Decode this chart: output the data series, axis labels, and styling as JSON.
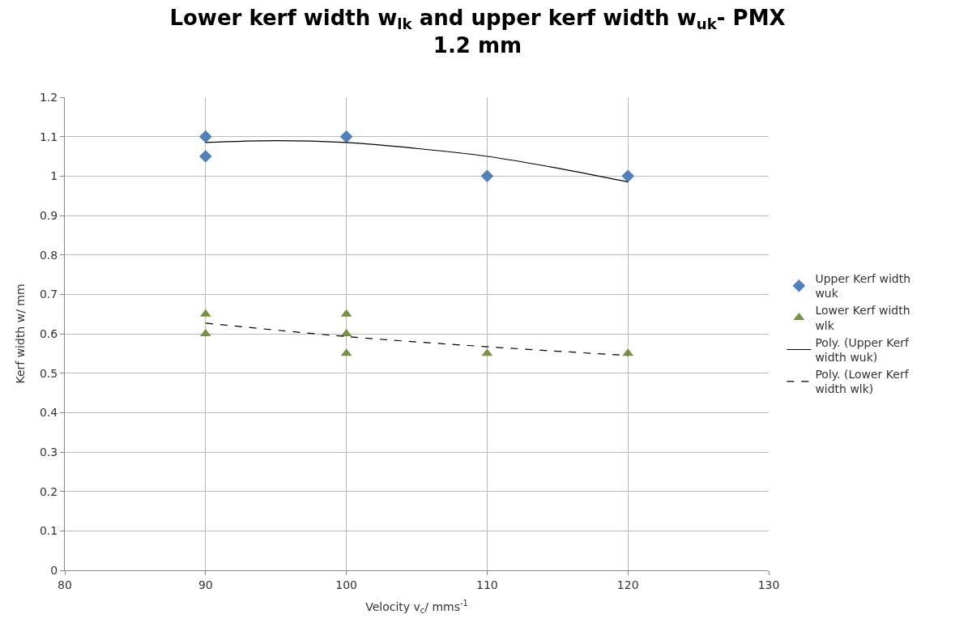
{
  "chart_data": {
    "type": "scatter",
    "title": "Lower kerf width w$_{lk}$ and upper kerf width w$_{uk}$- PMX\n1.2 mm",
    "xlabel": "Velocity v$_{c}$/ mms$^{-1}$",
    "ylabel": "Kerf width w/ mm",
    "series": [
      {
        "name": "Upper Kerf width wuk",
        "color": "#4f81bd",
        "marker": "diamond",
        "x": [
          90,
          90,
          100,
          110,
          120
        ],
        "values": [
          1.1,
          1.05,
          1.1,
          1.0,
          1.0
        ]
      },
      {
        "name": "Lower Kerf width wlk",
        "color": "#77933c",
        "marker": "triangle",
        "x": [
          90,
          90,
          100,
          100,
          100,
          110,
          120
        ],
        "values": [
          0.65,
          0.6,
          0.65,
          0.6,
          0.55,
          0.55,
          0.55
        ]
      },
      {
        "name": "Poly. (Upper Kerf width wuk)",
        "type": "line",
        "color": "#000000",
        "marker": "none",
        "line_style": "solid",
        "x": [
          90,
          95,
          100,
          105,
          110,
          115,
          120
        ],
        "values": [
          1.085,
          1.09,
          1.085,
          1.07,
          1.05,
          1.02,
          0.985
        ]
      },
      {
        "name": "Poly. (Lower Kerf width wlk)",
        "type": "line",
        "color": "#000000",
        "marker": "none",
        "line_style": "dashed",
        "x": [
          90,
          100,
          110,
          120
        ],
        "values": [
          0.627,
          0.593,
          0.567,
          0.545
        ]
      }
    ],
    "xlim": [
      80,
      130
    ],
    "xticks": [
      80,
      90,
      100,
      110,
      120,
      130
    ],
    "ylim": [
      0,
      1.2
    ],
    "yticks": [
      0,
      0.1,
      0.2,
      0.3,
      0.4,
      0.5,
      0.6,
      0.7,
      0.8,
      0.9,
      1,
      1.1,
      1.2
    ],
    "grid": true,
    "legend": "right"
  }
}
